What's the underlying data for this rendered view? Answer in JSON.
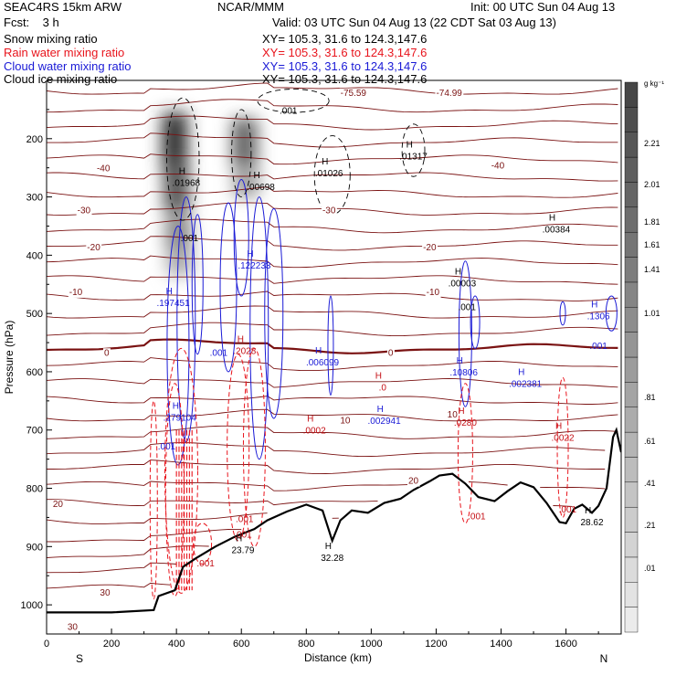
{
  "header": {
    "model": "SEAC4RS 15km ARW",
    "institution": "NCAR/MMM",
    "init": "Init: 00 UTC Sun 04 Aug 13",
    "forecast": "Fcst:    3 h",
    "valid": "Valid: 03 UTC Sun 04 Aug 13 (22 CDT Sat 03 Aug 13)",
    "fields": [
      {
        "name": "Snow mixing ratio",
        "xy": "XY= 105.3, 31.6 to 124.3,147.6",
        "color": "#000000"
      },
      {
        "name": "Rain water mixing ratio",
        "xy": "XY= 105.3, 31.6 to 124.3,147.6",
        "color": "#e8141c"
      },
      {
        "name": "Cloud water mixing ratio",
        "xy": "XY= 105.3, 31.6 to 124.3,147.6",
        "color": "#1a1ad6"
      },
      {
        "name": "Cloud ice mixing ratio",
        "xy": "XY= 105.3, 31.6 to 124.3,147.6",
        "color": "#000000"
      }
    ]
  },
  "chart_data": {
    "type": "cross-section contour",
    "xlabel": "Distance (km)",
    "ylabel": "Pressure (hPa)",
    "x_ticks": [
      0,
      200,
      400,
      600,
      800,
      1000,
      1200,
      1400,
      1600
    ],
    "x_tick_labels": [
      "0",
      "200",
      "400",
      "600",
      "800",
      "1000",
      "1200",
      "1400",
      "1600"
    ],
    "xlim": [
      0,
      1770
    ],
    "y_ticks": [
      200,
      300,
      400,
      500,
      600,
      700,
      800,
      900,
      1000
    ],
    "y_tick_labels": [
      "200",
      "300",
      "400",
      "500",
      "600",
      "700",
      "800",
      "900",
      "1000"
    ],
    "ylim": [
      1050,
      100
    ],
    "left_endpoint": "S",
    "right_endpoint": "N",
    "colorbar": {
      "unit": "g kg⁻¹",
      "labels": [
        "2.21",
        "2.01",
        "1.81",
        "1.61",
        "1.41",
        "1.01",
        ".81",
        ".61",
        ".41",
        ".21",
        ".01"
      ]
    },
    "temperature_labels": [
      {
        "text": "-40",
        "x": 175,
        "p": 250
      },
      {
        "text": "-40",
        "x": 1390,
        "p": 245
      },
      {
        "text": "-30",
        "x": 115,
        "p": 322
      },
      {
        "text": "-30",
        "x": 870,
        "p": 322
      },
      {
        "text": "-20",
        "x": 145,
        "p": 385
      },
      {
        "text": "-20",
        "x": 1180,
        "p": 385
      },
      {
        "text": "-10",
        "x": 90,
        "p": 462
      },
      {
        "text": "-10",
        "x": 1190,
        "p": 462
      },
      {
        "text": "0",
        "x": 185,
        "p": 566
      },
      {
        "text": "0",
        "x": 1060,
        "p": 566
      },
      {
        "text": "10",
        "x": 920,
        "p": 682
      },
      {
        "text": "10",
        "x": 1250,
        "p": 672
      },
      {
        "text": "20",
        "x": 1130,
        "p": 786
      },
      {
        "text": "20",
        "x": 35,
        "p": 826
      },
      {
        "text": "30",
        "x": 180,
        "p": 978
      },
      {
        "text": "30",
        "x": 80,
        "p": 1037
      },
      {
        "text": "-75.59",
        "x": 945,
        "p": 120
      },
      {
        "text": "-74.99",
        "x": 1240,
        "p": 120
      }
    ],
    "snow_maxima": [
      {
        "text": ".01968",
        "x": 430,
        "p": 275
      },
      {
        "text": ".00698",
        "x": 660,
        "p": 282
      },
      {
        "text": ".01026",
        "x": 870,
        "p": 258
      },
      {
        "text": ".01317",
        "x": 1130,
        "p": 229
      },
      {
        "text": ".00384",
        "x": 1570,
        "p": 355
      },
      {
        "text": ".00003",
        "x": 1280,
        "p": 447
      },
      {
        "text": ".001",
        "x": 1295,
        "p": 488
      }
    ],
    "ice_labels": [
      {
        "text": ".001",
        "x": 745,
        "p": 151
      },
      {
        "text": ".001",
        "x": 440,
        "p": 370
      }
    ],
    "cloud_water_maxima": [
      {
        "text": ".122233",
        "x": 640,
        "p": 417
      },
      {
        "text": ".197451",
        "x": 390,
        "p": 481
      },
      {
        "text": ".006099",
        "x": 850,
        "p": 583
      },
      {
        "text": ".10806",
        "x": 1285,
        "p": 600
      },
      {
        "text": ".002381",
        "x": 1475,
        "p": 620
      },
      {
        "text": ".1306",
        "x": 1700,
        "p": 504
      },
      {
        "text": ".279104",
        "x": 410,
        "p": 678
      },
      {
        "text": ".002941",
        "x": 1040,
        "p": 683
      },
      {
        "text": ".001",
        "x": 370,
        "p": 727
      },
      {
        "text": ".001",
        "x": 530,
        "p": 566
      },
      {
        "text": ".001",
        "x": 1700,
        "p": 555
      }
    ],
    "rain_maxima": [
      {
        "text": ".2028",
        "x": 610,
        "p": 563
      },
      {
        "text": ".0",
        "x": 1035,
        "p": 626
      },
      {
        "text": ".0280",
        "x": 1290,
        "p": 686
      },
      {
        "text": ".0002",
        "x": 825,
        "p": 700
      },
      {
        "text": ".0022",
        "x": 1590,
        "p": 712
      },
      {
        "text": ".001",
        "x": 610,
        "p": 852
      },
      {
        "text": ".001",
        "x": 1605,
        "p": 835
      },
      {
        "text": ".001",
        "x": 1325,
        "p": 847
      },
      {
        "text": ".001",
        "x": 490,
        "p": 928
      },
      {
        "text": ".001",
        "x": 605,
        "p": 878
      }
    ],
    "surface_pressure_labels": [
      {
        "text": "23.79",
        "x": 605,
        "p": 905
      },
      {
        "text": "32.28",
        "x": 880,
        "p": 918
      },
      {
        "text": "28.62",
        "x": 1680,
        "p": 857
      }
    ],
    "terrain_surface_pressure": [
      [
        0,
        1013
      ],
      [
        200,
        1013
      ],
      [
        330,
        1009
      ],
      [
        345,
        985
      ],
      [
        395,
        975
      ],
      [
        420,
        935
      ],
      [
        460,
        920
      ],
      [
        520,
        900
      ],
      [
        580,
        883
      ],
      [
        640,
        870
      ],
      [
        680,
        855
      ],
      [
        740,
        840
      ],
      [
        800,
        828
      ],
      [
        850,
        838
      ],
      [
        880,
        890
      ],
      [
        905,
        855
      ],
      [
        940,
        838
      ],
      [
        990,
        842
      ],
      [
        1040,
        825
      ],
      [
        1090,
        818
      ],
      [
        1130,
        803
      ],
      [
        1180,
        788
      ],
      [
        1210,
        778
      ],
      [
        1250,
        775
      ],
      [
        1290,
        792
      ],
      [
        1330,
        815
      ],
      [
        1380,
        822
      ],
      [
        1420,
        805
      ],
      [
        1460,
        790
      ],
      [
        1500,
        798
      ],
      [
        1540,
        825
      ],
      [
        1580,
        858
      ],
      [
        1600,
        860
      ],
      [
        1625,
        835
      ],
      [
        1650,
        828
      ],
      [
        1680,
        842
      ],
      [
        1700,
        830
      ],
      [
        1725,
        800
      ],
      [
        1745,
        712
      ],
      [
        1755,
        700
      ],
      [
        1770,
        738
      ]
    ]
  }
}
